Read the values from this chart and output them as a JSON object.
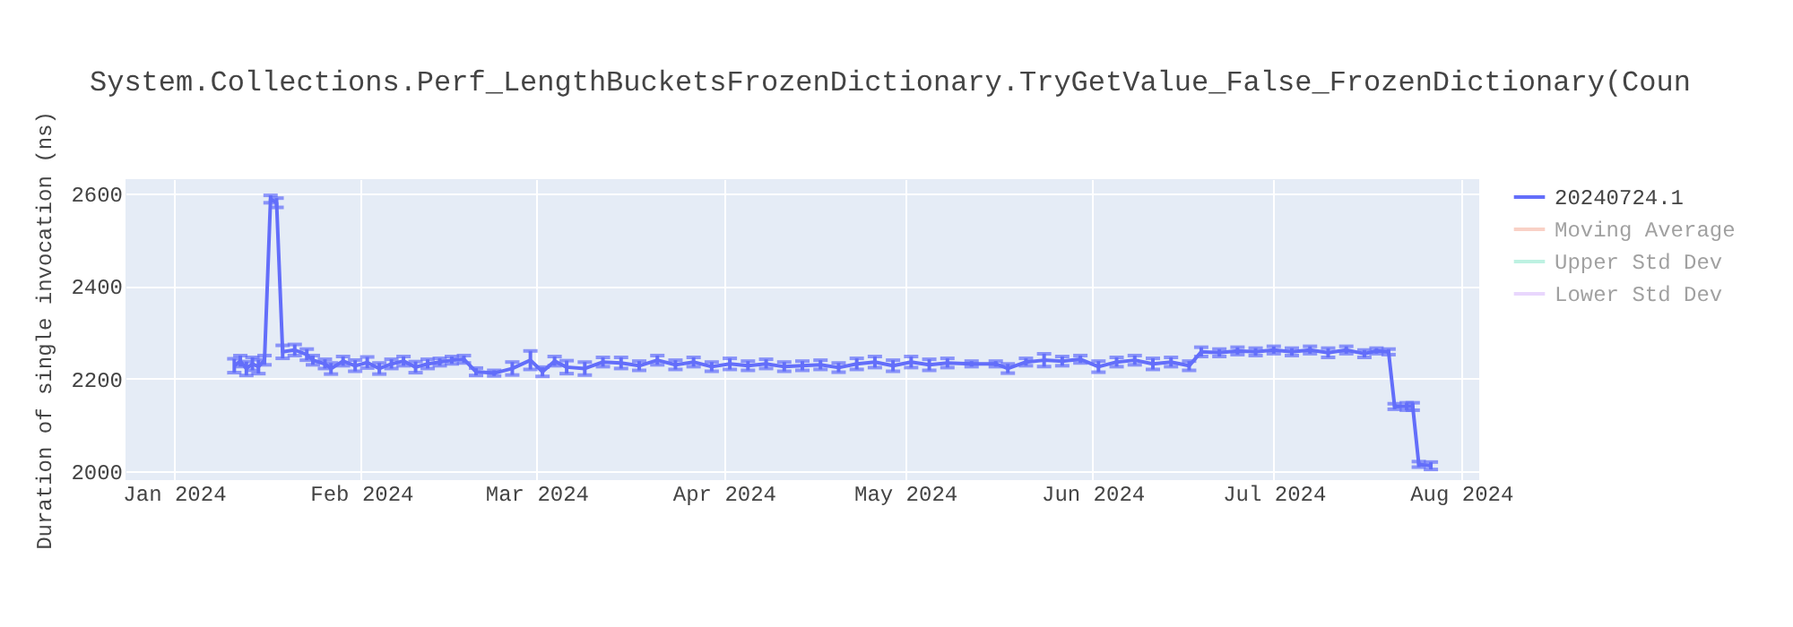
{
  "chart_data": {
    "type": "line",
    "title": "System.Collections.Perf_LengthBucketsFrozenDictionary.TryGetValue_False_FrozenDictionary(Coun",
    "ylabel": "Duration of single invocation (ns)",
    "xlim": [
      "2023-12-24",
      "2024-08-04"
    ],
    "ylim": [
      1981,
      2631
    ],
    "xticks": [
      {
        "value": "2024-01-01",
        "label": "Jan 2024"
      },
      {
        "value": "2024-02-01",
        "label": "Feb 2024"
      },
      {
        "value": "2024-03-01",
        "label": "Mar 2024"
      },
      {
        "value": "2024-04-01",
        "label": "Apr 2024"
      },
      {
        "value": "2024-05-01",
        "label": "May 2024"
      },
      {
        "value": "2024-06-01",
        "label": "Jun 2024"
      },
      {
        "value": "2024-07-01",
        "label": "Jul 2024"
      },
      {
        "value": "2024-08-01",
        "label": "Aug 2024"
      }
    ],
    "yticks": [
      2000,
      2200,
      2400,
      2600
    ],
    "grid": true,
    "legend": "top right",
    "marker": "none",
    "line_style": "solid",
    "series": [
      {
        "name": "20240724.1",
        "color": "#636efa",
        "x": [
          "2024-01-11",
          "2024-01-12",
          "2024-01-13",
          "2024-01-14",
          "2024-01-15",
          "2024-01-16",
          "2024-01-17",
          "2024-01-18",
          "2024-01-19",
          "2024-01-21",
          "2024-01-23",
          "2024-01-24",
          "2024-01-26",
          "2024-01-27",
          "2024-01-29",
          "2024-01-31",
          "2024-02-02",
          "2024-02-04",
          "2024-02-06",
          "2024-02-08",
          "2024-02-10",
          "2024-02-12",
          "2024-02-14",
          "2024-02-16",
          "2024-02-18",
          "2024-02-20",
          "2024-02-23",
          "2024-02-26",
          "2024-02-29",
          "2024-03-02",
          "2024-03-04",
          "2024-03-06",
          "2024-03-09",
          "2024-03-12",
          "2024-03-15",
          "2024-03-18",
          "2024-03-21",
          "2024-03-24",
          "2024-03-27",
          "2024-03-30",
          "2024-04-02",
          "2024-04-05",
          "2024-04-08",
          "2024-04-11",
          "2024-04-14",
          "2024-04-17",
          "2024-04-20",
          "2024-04-23",
          "2024-04-26",
          "2024-04-29",
          "2024-05-02",
          "2024-05-05",
          "2024-05-08",
          "2024-05-12",
          "2024-05-16",
          "2024-05-18",
          "2024-05-21",
          "2024-05-24",
          "2024-05-27",
          "2024-05-30",
          "2024-06-02",
          "2024-06-05",
          "2024-06-08",
          "2024-06-11",
          "2024-06-14",
          "2024-06-17",
          "2024-06-19",
          "2024-06-22",
          "2024-06-25",
          "2024-06-28",
          "2024-07-01",
          "2024-07-04",
          "2024-07-07",
          "2024-07-10",
          "2024-07-13",
          "2024-07-16",
          "2024-07-18",
          "2024-07-20",
          "2024-07-21",
          "2024-07-23",
          "2024-07-24",
          "2024-07-25",
          "2024-07-27"
        ],
        "values": [
          2228,
          2238,
          2222,
          2232,
          2226,
          2240,
          2588,
          2580,
          2258,
          2262,
          2252,
          2240,
          2232,
          2222,
          2238,
          2228,
          2235,
          2222,
          2232,
          2238,
          2225,
          2232,
          2236,
          2240,
          2242,
          2215,
          2212,
          2222,
          2240,
          2215,
          2238,
          2225,
          2222,
          2236,
          2234,
          2228,
          2240,
          2230,
          2236,
          2226,
          2232,
          2228,
          2232,
          2226,
          2228,
          2230,
          2224,
          2232,
          2236,
          2228,
          2236,
          2230,
          2234,
          2232,
          2232,
          2222,
          2236,
          2240,
          2238,
          2242,
          2226,
          2236,
          2240,
          2232,
          2236,
          2228,
          2258,
          2256,
          2260,
          2258,
          2262,
          2258,
          2262,
          2256,
          2262,
          2254,
          2260,
          2258,
          2140,
          2140,
          2140,
          2015,
          2012
        ],
        "errors": [
          15,
          12,
          15,
          14,
          15,
          10,
          8,
          10,
          14,
          12,
          12,
          10,
          10,
          12,
          10,
          12,
          12,
          12,
          10,
          10,
          12,
          10,
          8,
          8,
          8,
          8,
          6,
          14,
          20,
          10,
          10,
          14,
          14,
          10,
          12,
          10,
          10,
          10,
          10,
          10,
          12,
          10,
          10,
          10,
          10,
          10,
          10,
          12,
          12,
          12,
          12,
          12,
          10,
          6,
          6,
          10,
          8,
          14,
          10,
          8,
          12,
          10,
          10,
          12,
          10,
          10,
          10,
          8,
          8,
          8,
          8,
          8,
          8,
          10,
          8,
          8,
          6,
          6,
          6,
          8,
          8,
          6,
          8
        ]
      },
      {
        "name": "Moving Average",
        "color": "#f4a58e"
      },
      {
        "name": "Upper Std Dev",
        "color": "#7fe5c7"
      },
      {
        "name": "Lower Std Dev",
        "color": "#d5b1fc"
      }
    ]
  }
}
